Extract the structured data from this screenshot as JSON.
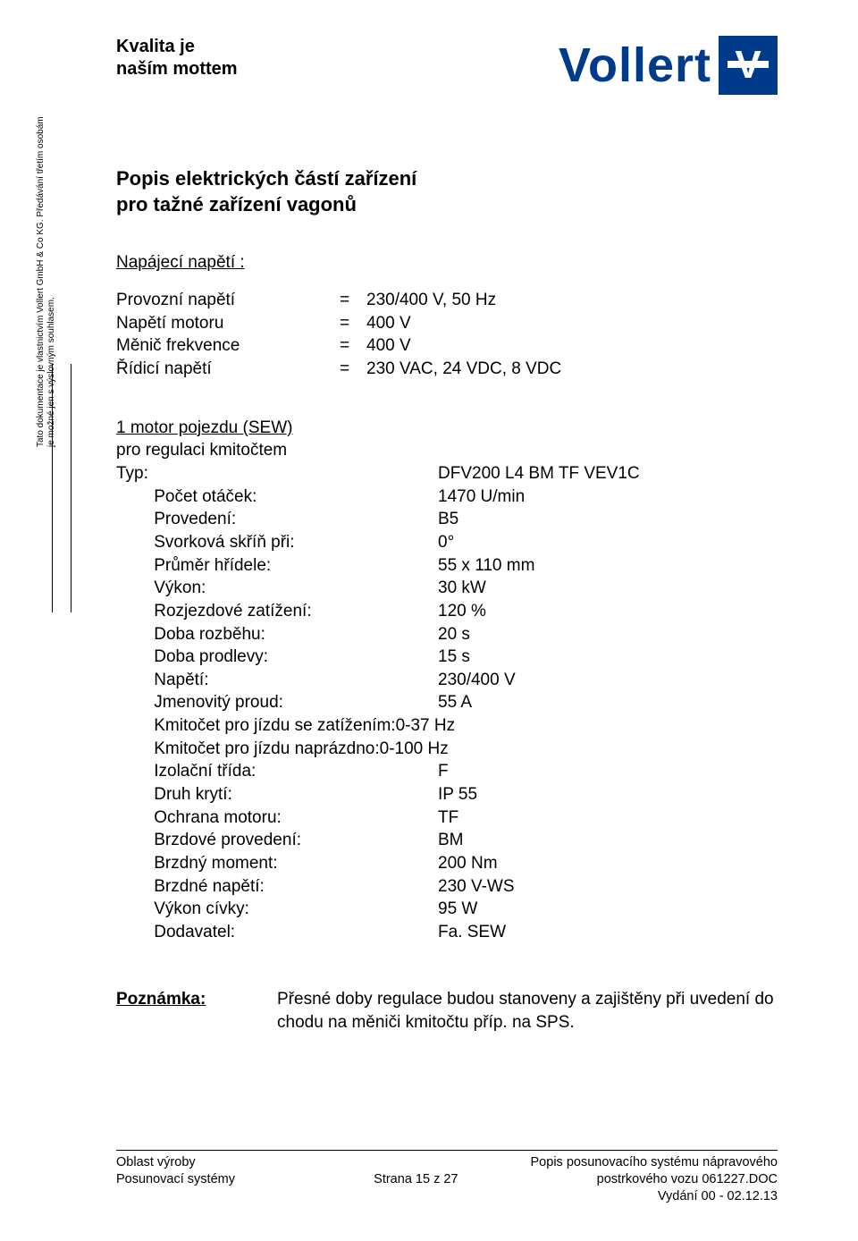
{
  "colors": {
    "brand_blue": "#003a8a",
    "text": "#000000",
    "background": "#ffffff"
  },
  "typography": {
    "body_fontsize": 19,
    "title_fontsize": 22,
    "motto_fontsize": 20,
    "footer_fontsize": 14.5,
    "logo_fontsize": 54
  },
  "header": {
    "motto_line1": "Kvalita je",
    "motto_line2": "naším mottem",
    "logo_text": "Vollert",
    "logo_mark_letter": "V"
  },
  "title": {
    "line1": "Popis elektrických částí zařízení",
    "line2": "pro tažné zařízení vagonů"
  },
  "supply": {
    "heading": "Napájecí napětí :",
    "rows": [
      {
        "label": "Provozní napětí",
        "value": "230/400 V, 50 Hz"
      },
      {
        "label": "Napětí motoru",
        "value": "400 V"
      },
      {
        "label": "Měnič frekvence",
        "value": "400 V"
      },
      {
        "label": "Řídicí napětí",
        "value": "230 VAC, 24 VDC, 8 VDC"
      }
    ]
  },
  "side_note": {
    "line1": "Tato dokumentace je vlastnictvím Vollert GmbH & Co KG. Předávání třetím osobám",
    "line2": "je možné jen s výslovným souhlasem."
  },
  "motor": {
    "heading": "1 motor pojezdu (SEW)",
    "subheading": "pro regulaci kmitočtem",
    "rows": [
      {
        "label": "Typ:",
        "value": "DFV200 L4 BM TF VEV1C"
      },
      {
        "label": "        Počet otáček:",
        "value": "1470 U/min"
      },
      {
        "label": "        Provedení:",
        "value": "B5"
      },
      {
        "label": "        Svorková skříň při:",
        "value": "0°"
      },
      {
        "label": "        Průměr hřídele:",
        "value": "55 x 110 mm"
      },
      {
        "label": "        Výkon:",
        "value": "30 kW"
      },
      {
        "label": "        Rozjezdové zatížení:",
        "value": "120 %"
      },
      {
        "label": "        Doba rozběhu:",
        "value": "20 s"
      },
      {
        "label": "        Doba prodlevy:",
        "value": "15 s"
      },
      {
        "label": "        Napětí:",
        "value": "230/400 V"
      },
      {
        "label": "        Jmenovitý proud:",
        "value": "55 A"
      },
      {
        "label": "        Kmitočet pro jízdu se zatížením:0-37 Hz",
        "value": ""
      },
      {
        "label": "        Kmitočet pro jízdu naprázdno:0-100 Hz",
        "value": ""
      },
      {
        "label": "        Izolační třída:",
        "value": "F"
      },
      {
        "label": "        Druh krytí:",
        "value": "IP 55"
      },
      {
        "label": "        Ochrana motoru:",
        "value": "TF"
      },
      {
        "label": "        Brzdové provedení:",
        "value": "BM"
      },
      {
        "label": "        Brzdný moment:",
        "value": "200 Nm"
      },
      {
        "label": "        Brzdné napětí:",
        "value": "230 V-WS"
      },
      {
        "label": "        Výkon cívky:",
        "value": "95 W"
      },
      {
        "label": "        Dodavatel:",
        "value": "Fa. SEW"
      }
    ]
  },
  "note": {
    "label": "Poznámka:",
    "text": "Přesné doby regulace budou stanoveny a zajištěny při uvedení do chodu na měniči kmitočtu příp. na SPS."
  },
  "footer": {
    "row1": {
      "left": "Oblast výroby",
      "center": "",
      "right": "Popis posunovacího systému nápravového"
    },
    "row2": {
      "left": "Posunovací systémy",
      "center": "Strana 15 z 27",
      "right": "postrkového vozu 061227.DOC"
    },
    "row3": {
      "left": "",
      "center": "",
      "right": "Vydání 00 - 02.12.13"
    }
  }
}
